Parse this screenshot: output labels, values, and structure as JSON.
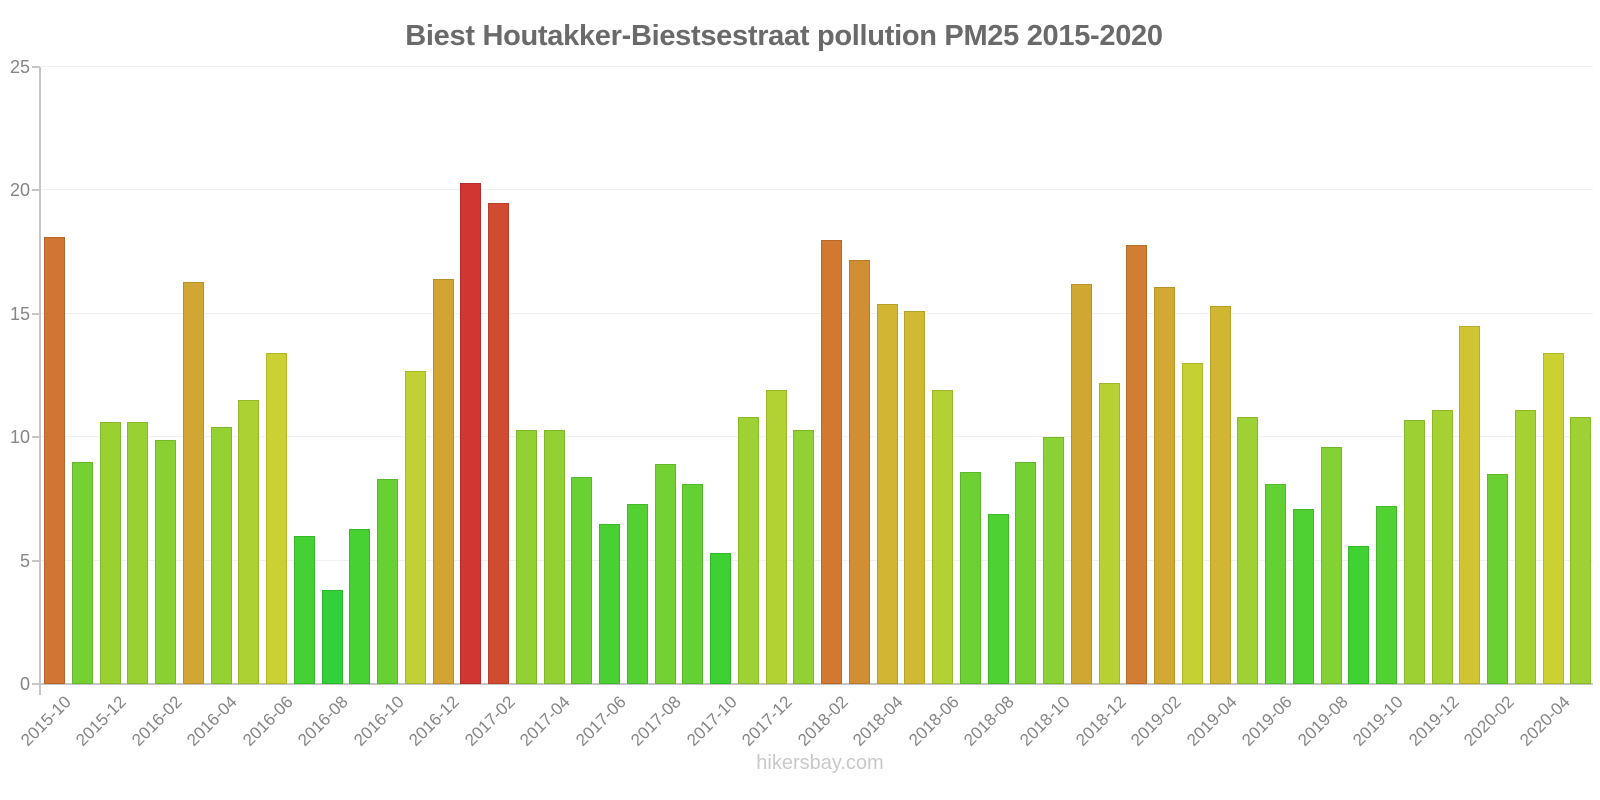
{
  "page": {
    "footer": "hikersbay.com"
  },
  "chart_data": {
    "type": "bar",
    "title": "Biest Houtakker-Biestsestraat pollution PM25 2015-2020",
    "xlabel": "",
    "ylabel": "",
    "ylim": [
      0,
      25
    ],
    "yticks": [
      0,
      5,
      10,
      15,
      20,
      25
    ],
    "x_label_every": 2,
    "grid": true,
    "legend_position": "none",
    "categories": [
      "2015-10",
      "2015-11",
      "2015-12",
      "2016-01",
      "2016-02",
      "2016-03",
      "2016-04",
      "2016-05",
      "2016-06",
      "2016-07",
      "2016-08",
      "2016-09",
      "2016-10",
      "2016-11",
      "2016-12",
      "2017-01",
      "2017-02",
      "2017-03",
      "2017-04",
      "2017-05",
      "2017-06",
      "2017-07",
      "2017-08",
      "2017-09",
      "2017-10",
      "2017-11",
      "2017-12",
      "2018-01",
      "2018-02",
      "2018-03",
      "2018-04",
      "2018-05",
      "2018-06",
      "2018-07",
      "2018-08",
      "2018-09",
      "2018-10",
      "2018-11",
      "2018-12",
      "2019-01",
      "2019-02",
      "2019-03",
      "2019-04",
      "2019-05",
      "2019-06",
      "2019-07",
      "2019-08",
      "2019-09",
      "2019-10",
      "2019-11",
      "2019-12",
      "2020-01",
      "2020-02",
      "2020-03",
      "2020-04",
      "2020-05"
    ],
    "values": [
      18.1,
      9.0,
      10.6,
      10.6,
      9.9,
      16.3,
      10.4,
      11.5,
      13.4,
      6.0,
      3.8,
      6.3,
      8.3,
      12.7,
      16.4,
      20.3,
      19.5,
      10.3,
      10.3,
      8.4,
      6.5,
      7.3,
      8.9,
      8.1,
      5.3,
      10.8,
      11.9,
      10.3,
      18.0,
      17.2,
      15.4,
      15.1,
      11.9,
      8.6,
      6.9,
      9.0,
      10.0,
      16.2,
      12.2,
      17.8,
      16.1,
      13.0,
      15.3,
      10.8,
      8.1,
      7.1,
      9.6,
      5.6,
      7.2,
      10.7,
      11.1,
      14.5,
      8.5,
      11.1,
      13.4,
      10.8
    ],
    "bar_color_scale": {
      "mode": "hsl-hue-by-value",
      "hue_anchors": [
        [
          3.8,
          122
        ],
        [
          7.0,
          110
        ],
        [
          9.0,
          95
        ],
        [
          11.2,
          76
        ],
        [
          14.5,
          55
        ],
        [
          16.4,
          43
        ],
        [
          18.1,
          25
        ],
        [
          19.5,
          9
        ],
        [
          20.3,
          1
        ]
      ],
      "saturation_pct": 63,
      "lightness_pct": 51,
      "border_lightness_pct": 44
    },
    "colors": {
      "title": "#6a6a6a",
      "axis_labels": "#858585",
      "axis_line": "#c6c6c6",
      "gridline": "#f0f0f0",
      "footer": "#c9c9c9"
    }
  }
}
